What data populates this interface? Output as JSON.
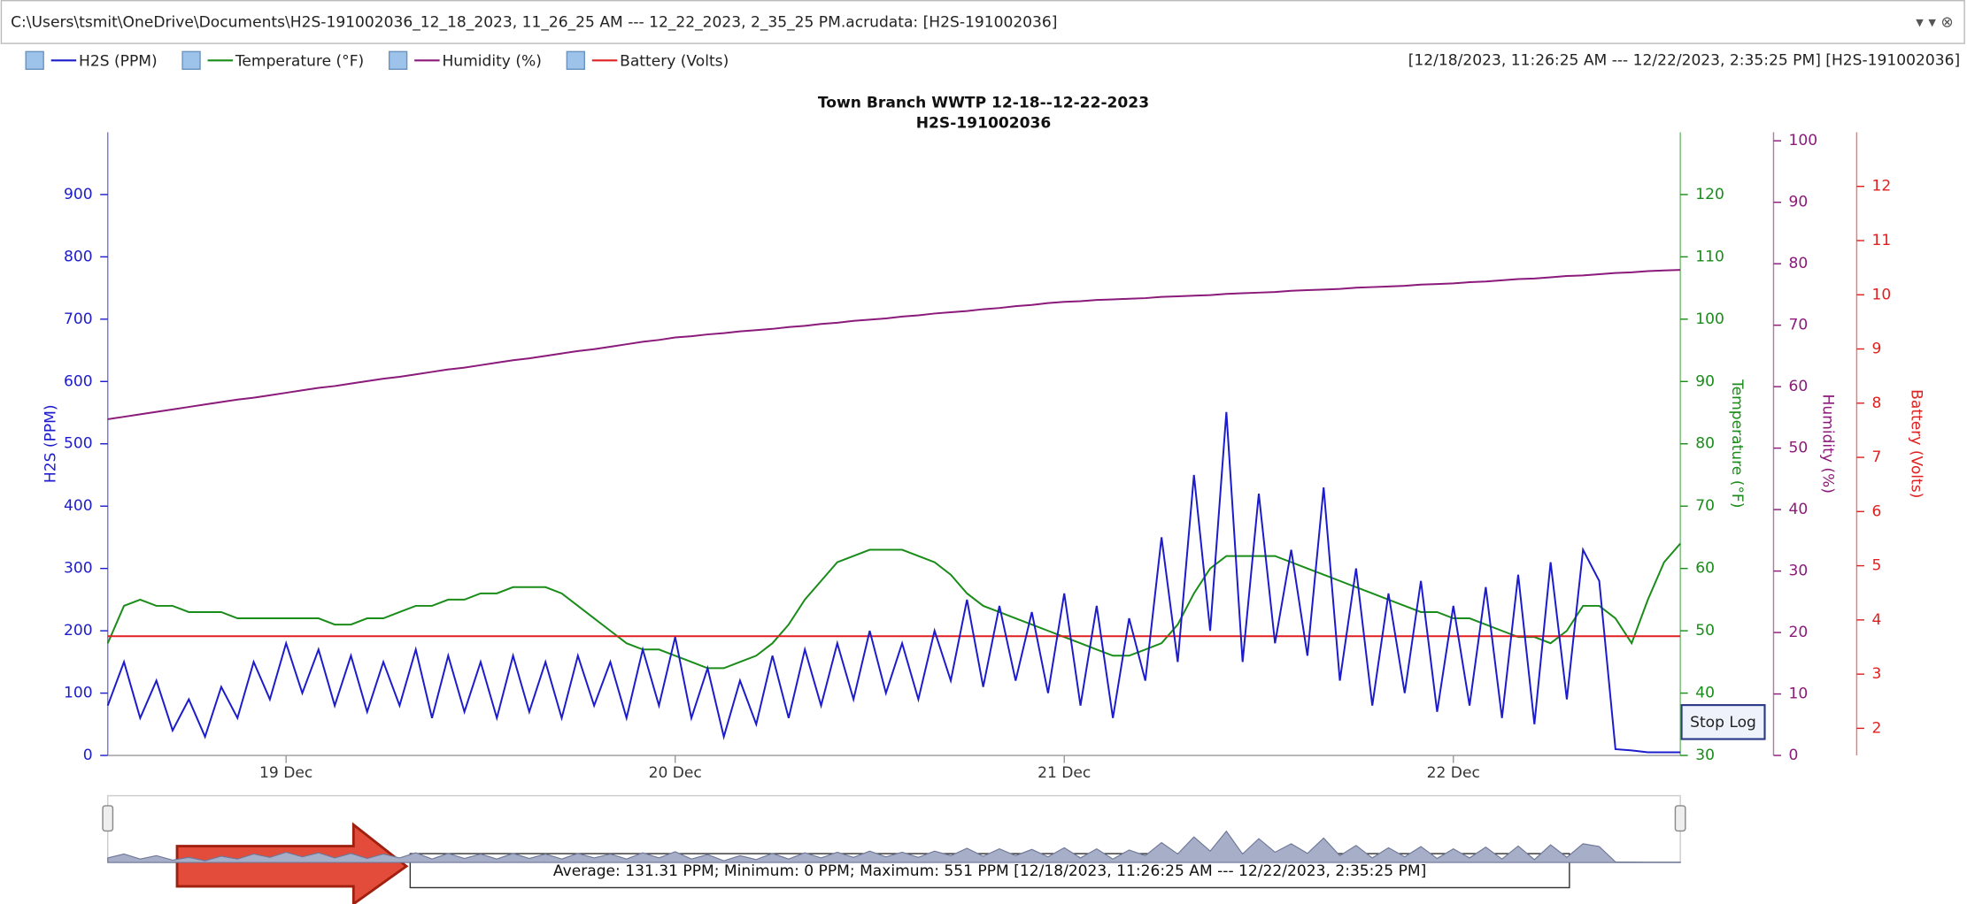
{
  "window": {
    "path": "C:\\Users\\tsmit\\OneDrive\\Documents\\H2S-191002036_12_18_2023, 11_26_25 AM --- 12_22_2023, 2_35_25 PM.acrudata:  [H2S-191002036]",
    "range": "[12/18/2023, 11:26:25 AM --- 12/22/2023, 2:35:25 PM] [H2S-191002036]",
    "summary": "Average: 131.31 PPM; Minimum: 0 PPM; Maximum: 551 PPM [12/18/2023, 11:26:25 AM --- 12/22/2023, 2:35:25 PM]",
    "button": "Stop Log"
  },
  "chart_data": {
    "type": "line",
    "title": "Town Branch WWTP 12-18--12-22-2023",
    "subtitle": "H2S-191002036",
    "ylabel": "H2S (PPM)",
    "y2label": "Temperature (°F)",
    "y3label": "Humidity (%)",
    "y4label": "Battery (Volts)",
    "categories": [
      null,
      null,
      null,
      null,
      null,
      null,
      null,
      null,
      null,
      null,
      null,
      "19 Dec",
      null,
      null,
      null,
      null,
      null,
      null,
      null,
      null,
      null,
      null,
      null,
      null,
      null,
      null,
      null,
      null,
      null,
      null,
      null,
      null,
      null,
      null,
      null,
      "20 Dec",
      null,
      null,
      null,
      null,
      null,
      null,
      null,
      null,
      null,
      null,
      null,
      null,
      null,
      null,
      null,
      null,
      null,
      null,
      null,
      null,
      null,
      null,
      null,
      "21 Dec",
      null,
      null,
      null,
      null,
      null,
      null,
      null,
      null,
      null,
      null,
      null,
      null,
      null,
      null,
      null,
      null,
      null,
      null,
      null,
      null,
      null,
      null,
      null,
      "22 Dec",
      null,
      null,
      null,
      null,
      null,
      null,
      null,
      null,
      null,
      null,
      null,
      null,
      null,
      null
    ],
    "ylim": [
      0,
      1000
    ],
    "yticks": [
      0,
      100,
      200,
      300,
      400,
      500,
      600,
      700,
      800,
      900
    ],
    "y2lim": [
      30,
      130
    ],
    "y2ticks": [
      30,
      40,
      50,
      60,
      70,
      80,
      90,
      100,
      110,
      120
    ],
    "y3lim": [
      0,
      101.4
    ],
    "y3ticks": [
      0,
      10,
      20,
      30,
      40,
      50,
      60,
      70,
      80,
      90,
      100
    ],
    "y4lim": [
      1.5,
      13
    ],
    "y4ticks": [
      2,
      3,
      4,
      5,
      6,
      7,
      8,
      9,
      10,
      11,
      12
    ],
    "grid": false,
    "series": [
      {
        "name": "H2S (PPM)",
        "color": "#1c1ccc",
        "axis": "y",
        "values": [
          80,
          150,
          60,
          120,
          40,
          90,
          30,
          110,
          60,
          150,
          90,
          180,
          100,
          170,
          80,
          160,
          70,
          150,
          80,
          170,
          60,
          160,
          70,
          150,
          60,
          160,
          70,
          150,
          60,
          160,
          80,
          150,
          60,
          170,
          80,
          190,
          60,
          140,
          30,
          120,
          50,
          160,
          60,
          170,
          80,
          180,
          90,
          200,
          100,
          180,
          90,
          200,
          120,
          250,
          110,
          240,
          120,
          230,
          100,
          260,
          80,
          240,
          60,
          220,
          120,
          350,
          150,
          450,
          200,
          551,
          150,
          420,
          180,
          330,
          160,
          430,
          120,
          300,
          80,
          260,
          100,
          280,
          70,
          240,
          80,
          270,
          60,
          290,
          50,
          310,
          90,
          330,
          280,
          10,
          8,
          5,
          5,
          5
        ]
      },
      {
        "name": "Temperature (°F)",
        "color": "#1a8c1a",
        "axis": "y2",
        "values": [
          48,
          54,
          55,
          54,
          54,
          53,
          53,
          53,
          52,
          52,
          52,
          52,
          52,
          52,
          51,
          51,
          52,
          52,
          53,
          54,
          54,
          55,
          55,
          56,
          56,
          57,
          57,
          57,
          56,
          54,
          52,
          50,
          48,
          47,
          47,
          46,
          45,
          44,
          44,
          45,
          46,
          48,
          51,
          55,
          58,
          61,
          62,
          63,
          63,
          63,
          62,
          61,
          59,
          56,
          54,
          53,
          52,
          51,
          50,
          49,
          48,
          47,
          46,
          46,
          47,
          48,
          51,
          56,
          60,
          62,
          62,
          62,
          62,
          61,
          60,
          59,
          58,
          57,
          56,
          55,
          54,
          53,
          53,
          52,
          52,
          51,
          50,
          49,
          49,
          48,
          50,
          54,
          54,
          52,
          48,
          55,
          61,
          64
        ]
      },
      {
        "name": "Humidity (%)",
        "color": "#8b1a7a",
        "axis": "y3",
        "values": [
          54.7,
          55.1,
          55.5,
          55.9,
          56.3,
          56.7,
          57.1,
          57.5,
          57.9,
          58.2,
          58.6,
          59.0,
          59.4,
          59.8,
          60.1,
          60.5,
          60.9,
          61.3,
          61.6,
          62.0,
          62.4,
          62.8,
          63.1,
          63.5,
          63.9,
          64.3,
          64.6,
          65.0,
          65.4,
          65.8,
          66.1,
          66.5,
          66.9,
          67.3,
          67.6,
          68.0,
          68.2,
          68.5,
          68.7,
          69.0,
          69.2,
          69.4,
          69.7,
          69.9,
          70.2,
          70.4,
          70.7,
          70.9,
          71.1,
          71.4,
          71.6,
          71.9,
          72.1,
          72.3,
          72.6,
          72.8,
          73.1,
          73.3,
          73.6,
          73.8,
          73.9,
          74.1,
          74.2,
          74.3,
          74.4,
          74.6,
          74.7,
          74.8,
          74.9,
          75.1,
          75.2,
          75.3,
          75.4,
          75.6,
          75.7,
          75.8,
          75.9,
          76.1,
          76.2,
          76.3,
          76.4,
          76.6,
          76.7,
          76.8,
          77.0,
          77.1,
          77.3,
          77.5,
          77.6,
          77.8,
          78.0,
          78.1,
          78.3,
          78.5,
          78.6,
          78.8,
          78.9,
          79.0
        ]
      },
      {
        "name": "Battery (Volts)",
        "color": "#e02020",
        "axis": "y4",
        "values": [
          3.7,
          3.7,
          3.7,
          3.7,
          3.7,
          3.7,
          3.7,
          3.7,
          3.7,
          3.7,
          3.7,
          3.7,
          3.7,
          3.7,
          3.7,
          3.7,
          3.7,
          3.7,
          3.7,
          3.7,
          3.7,
          3.7,
          3.7,
          3.7,
          3.7,
          3.7,
          3.7,
          3.7,
          3.7,
          3.7,
          3.7,
          3.7,
          3.7,
          3.7,
          3.7,
          3.7,
          3.7,
          3.7,
          3.7,
          3.7,
          3.7,
          3.7,
          3.7,
          3.7,
          3.7,
          3.7,
          3.7,
          3.7,
          3.7,
          3.7,
          3.7,
          3.7,
          3.7,
          3.7,
          3.7,
          3.7,
          3.7,
          3.7,
          3.7,
          3.7,
          3.7,
          3.7,
          3.7,
          3.7,
          3.7,
          3.7,
          3.7,
          3.7,
          3.7,
          3.7,
          3.7,
          3.7,
          3.7,
          3.7,
          3.7,
          3.7,
          3.7,
          3.7,
          3.7,
          3.7,
          3.7,
          3.7,
          3.7,
          3.7,
          3.7,
          3.7,
          3.7,
          3.7,
          3.7,
          3.7,
          3.7,
          3.7,
          3.7,
          3.7,
          3.7,
          3.7,
          3.7,
          3.7
        ]
      }
    ]
  }
}
